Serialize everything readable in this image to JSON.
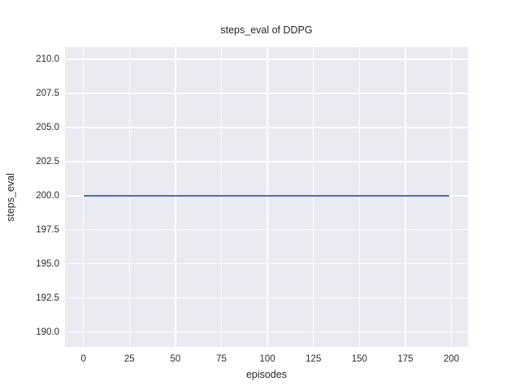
{
  "chart_data": {
    "type": "line",
    "title": "steps_eval of DDPG",
    "xlabel": "episodes",
    "ylabel": "steps_eval",
    "x_ticks": [
      0,
      25,
      50,
      75,
      100,
      125,
      150,
      175,
      200
    ],
    "x_tick_labels": [
      "0",
      "25",
      "50",
      "75",
      "100",
      "125",
      "150",
      "175",
      "200"
    ],
    "y_ticks": [
      190.0,
      192.5,
      195.0,
      197.5,
      200.0,
      202.5,
      205.0,
      207.5,
      210.0
    ],
    "y_tick_labels": [
      "190.0",
      "192.5",
      "195.0",
      "197.5",
      "200.0",
      "202.5",
      "205.0",
      "207.5",
      "210.0"
    ],
    "xlim": [
      -10,
      209
    ],
    "ylim": [
      188.9,
      210.9
    ],
    "grid": true,
    "legend": false,
    "series": [
      {
        "name": "steps_eval",
        "color": "#4c72b0",
        "x_start": 0,
        "x_end": 199,
        "constant_y": 200,
        "description": "constant line at steps_eval = 200 for episodes 0 through 199"
      }
    ],
    "style": {
      "figure_bg": "#ffffff",
      "plot_bg": "#eaeaf2",
      "grid_color": "#ffffff",
      "text_color": "#262626",
      "line_color": "#4c72b0"
    }
  }
}
